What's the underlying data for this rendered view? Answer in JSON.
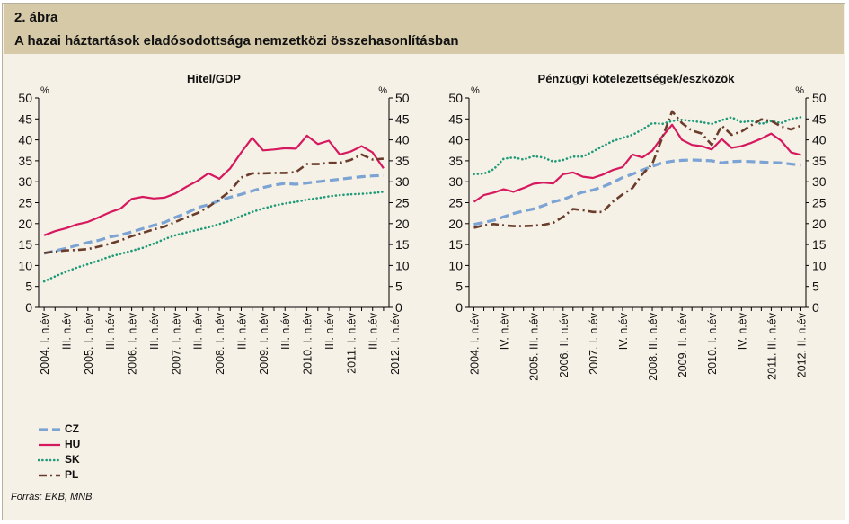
{
  "figure": {
    "label": "2. ábra",
    "title": "A hazai háztartások eladósodottsága nemzetközi összehasonlításban",
    "source": "Forrás: EKB, MNB."
  },
  "legend": [
    {
      "name": "CZ",
      "color": "#7ba3d4",
      "style": "dashed"
    },
    {
      "name": "HU",
      "color": "#d6185f",
      "style": "solid"
    },
    {
      "name": "SK",
      "color": "#1e9a78",
      "style": "dotted"
    },
    {
      "name": "PL",
      "color": "#6a3c2c",
      "style": "dashdot"
    }
  ],
  "chart_data": [
    {
      "type": "line",
      "title": "Hitel/GDP",
      "ylabel_left": "%",
      "ylabel_right": "%",
      "ylim": [
        0,
        50
      ],
      "yticks": [
        0,
        5,
        10,
        15,
        20,
        25,
        30,
        35,
        40,
        45,
        50
      ],
      "grid": false,
      "x_tick_labels": [
        "2004. I. n.év",
        "III. n.év",
        "2005. I. n.év",
        "III. n.év",
        "2006. I. n.év",
        "III. n.év",
        "2007. I. n.év",
        "III. n.év",
        "2008. I. n.év",
        "III. n.év",
        "2009. I. n.év",
        "III. n.év",
        "2010. I. n.év",
        "III. n.év",
        "2011. I. n.év",
        "III. n.év",
        "2012. I. n.év"
      ],
      "x_tick_every": 2,
      "series": [
        {
          "name": "CZ",
          "values": [
            12.9,
            13.5,
            14.1,
            14.8,
            15.5,
            16.0,
            16.8,
            17.3,
            18.0,
            18.8,
            19.6,
            20.3,
            21.5,
            22.5,
            23.8,
            24.5,
            25.5,
            26.3,
            27.0,
            27.8,
            28.6,
            29.2,
            29.6,
            29.4,
            29.7,
            30.0,
            30.3,
            30.6,
            30.9,
            31.2,
            31.4,
            31.5
          ]
        },
        {
          "name": "HU",
          "values": [
            17.2,
            18.2,
            18.9,
            19.8,
            20.4,
            21.5,
            22.7,
            23.6,
            25.9,
            26.4,
            26.0,
            26.2,
            27.2,
            28.8,
            30.2,
            32.0,
            30.7,
            33.2,
            37.0,
            40.5,
            37.5,
            37.7,
            38.0,
            37.9,
            41.0,
            39.0,
            39.8,
            36.5,
            37.2,
            38.5,
            37.0,
            33.2
          ]
        },
        {
          "name": "SK",
          "values": [
            6.2,
            7.4,
            8.5,
            9.5,
            10.3,
            11.2,
            12.1,
            12.8,
            13.5,
            14.2,
            15.2,
            16.3,
            17.2,
            17.9,
            18.5,
            19.1,
            19.9,
            20.7,
            21.8,
            22.8,
            23.6,
            24.3,
            24.8,
            25.2,
            25.7,
            26.1,
            26.5,
            26.8,
            27.0,
            27.1,
            27.3,
            27.6
          ]
        },
        {
          "name": "PL",
          "values": [
            13.0,
            13.3,
            13.6,
            13.7,
            13.9,
            14.5,
            15.2,
            16.0,
            17.0,
            17.8,
            18.6,
            19.3,
            20.4,
            21.5,
            22.5,
            24.0,
            25.8,
            27.8,
            31.0,
            32.0,
            32.0,
            32.1,
            32.1,
            32.3,
            34.2,
            34.2,
            34.5,
            34.5,
            35.2,
            36.5,
            35.3,
            35.5
          ]
        }
      ]
    },
    {
      "type": "line",
      "title": "Pénzügyi kötelezettségek/eszközök",
      "ylabel_left": "%",
      "ylabel_right": "%",
      "ylim": [
        0,
        50
      ],
      "yticks": [
        0,
        5,
        10,
        15,
        20,
        25,
        30,
        35,
        40,
        45,
        50
      ],
      "grid": false,
      "x_tick_labels": [
        "2004. I. n.év",
        "IV. n.év",
        "2005. III. n.év",
        "2006. II. n.év",
        "2007. I. n.év",
        "IV. n.év",
        "2008. III. n.év",
        "2009. II. n.év",
        "2010. I. n.év",
        "IV. n.év",
        "2011. III. n.év",
        "2012. II. n.év"
      ],
      "x_tick_every": 3,
      "series": [
        {
          "name": "CZ",
          "values": [
            19.8,
            20.3,
            20.8,
            21.6,
            22.4,
            23.0,
            23.5,
            24.3,
            25.2,
            25.8,
            26.7,
            27.5,
            28.0,
            28.8,
            29.8,
            31.0,
            31.8,
            32.8,
            33.7,
            34.5,
            34.9,
            35.1,
            35.2,
            35.1,
            35.0,
            34.5,
            34.8,
            34.9,
            34.8,
            34.7,
            34.6,
            34.5,
            34.2,
            34.0
          ]
        },
        {
          "name": "HU",
          "values": [
            25.2,
            26.8,
            27.4,
            28.2,
            27.6,
            28.5,
            29.5,
            29.8,
            29.6,
            31.8,
            32.2,
            31.2,
            30.9,
            31.7,
            32.8,
            33.5,
            36.5,
            35.8,
            37.4,
            40.8,
            43.6,
            40.0,
            38.8,
            38.5,
            37.7,
            40.2,
            38.1,
            38.5,
            39.3,
            40.3,
            41.5,
            39.8,
            37.0,
            36.4
          ]
        },
        {
          "name": "SK",
          "values": [
            31.8,
            31.9,
            33.0,
            35.5,
            35.8,
            35.3,
            36.1,
            35.8,
            34.8,
            35.2,
            36.0,
            36.0,
            37.2,
            38.5,
            39.7,
            40.5,
            41.2,
            42.5,
            44.0,
            43.8,
            44.5,
            44.8,
            44.5,
            44.2,
            43.8,
            44.7,
            45.4,
            44.2,
            44.5,
            43.8,
            44.5,
            44.0,
            45.0,
            45.4
          ]
        },
        {
          "name": "PL",
          "values": [
            19.0,
            19.6,
            19.9,
            19.6,
            19.4,
            19.4,
            19.5,
            19.7,
            20.2,
            21.6,
            23.5,
            23.2,
            22.8,
            22.8,
            25.2,
            27.0,
            28.5,
            31.8,
            34.2,
            40.5,
            46.8,
            44.0,
            42.2,
            41.5,
            38.8,
            43.4,
            41.2,
            42.0,
            43.5,
            44.9,
            44.5,
            43.2,
            42.5,
            43.4
          ]
        }
      ]
    }
  ]
}
